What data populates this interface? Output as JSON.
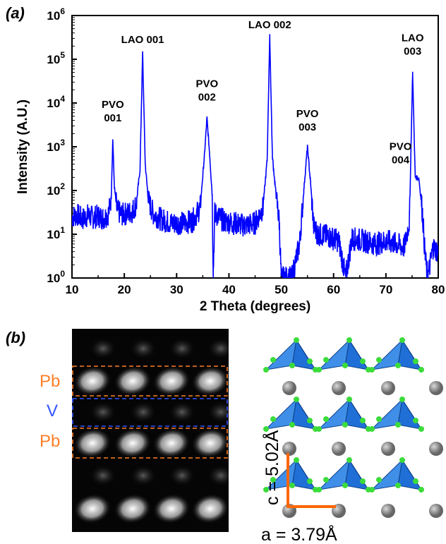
{
  "panels": {
    "a": {
      "label": "(a)"
    },
    "b": {
      "label": "(b)"
    }
  },
  "chart_data": {
    "type": "line",
    "xlabel": "2 Theta (degrees)",
    "ylabel": "Intensity (A.U.)",
    "xlim": [
      10,
      80
    ],
    "ylim": [
      1,
      1000000
    ],
    "yscale": "log",
    "xticks": [
      10,
      20,
      30,
      40,
      50,
      60,
      70,
      80
    ],
    "yticks": [
      "10^0",
      "10^1",
      "10^2",
      "10^3",
      "10^4",
      "10^5",
      "10^6"
    ],
    "series": [
      {
        "color": "#0000ff",
        "points": [
          [
            10,
            25
          ],
          [
            11,
            28
          ],
          [
            12,
            22
          ],
          [
            13,
            27
          ],
          [
            14,
            24
          ],
          [
            15,
            26
          ],
          [
            16,
            23
          ],
          [
            17,
            30
          ],
          [
            17.5,
            70
          ],
          [
            17.8,
            1500
          ],
          [
            18.1,
            120
          ],
          [
            18.6,
            35
          ],
          [
            19.5,
            28
          ],
          [
            20.5,
            30
          ],
          [
            21.5,
            33
          ],
          [
            22.3,
            50
          ],
          [
            23,
            300
          ],
          [
            23.5,
            140000
          ],
          [
            24,
            400
          ],
          [
            24.6,
            60
          ],
          [
            25.5,
            30
          ],
          [
            27,
            22
          ],
          [
            29,
            18
          ],
          [
            31,
            18
          ],
          [
            33,
            20
          ],
          [
            34.5,
            40
          ],
          [
            35.3,
            600
          ],
          [
            35.8,
            4500
          ],
          [
            36.3,
            700
          ],
          [
            36.8,
            80
          ],
          [
            37,
            1.4
          ],
          [
            37.3,
            30
          ],
          [
            39,
            20
          ],
          [
            41,
            18
          ],
          [
            43,
            16
          ],
          [
            45,
            18
          ],
          [
            46.5,
            40
          ],
          [
            47.3,
            500
          ],
          [
            47.8,
            330000
          ],
          [
            48.3,
            600
          ],
          [
            49,
            80
          ],
          [
            49.6,
            20
          ],
          [
            50,
            1
          ],
          [
            52,
            1
          ],
          [
            53.5,
            6
          ],
          [
            54.3,
            100
          ],
          [
            55,
            1000
          ],
          [
            55.6,
            150
          ],
          [
            56.2,
            15
          ],
          [
            57,
            10
          ],
          [
            59,
            9
          ],
          [
            61,
            7
          ],
          [
            62.3,
            1
          ],
          [
            63.5,
            8
          ],
          [
            66,
            7
          ],
          [
            68,
            6
          ],
          [
            70,
            7
          ],
          [
            72,
            6
          ],
          [
            73.5,
            5
          ],
          [
            74.5,
            20
          ],
          [
            75.1,
            50000
          ],
          [
            75.6,
            200
          ],
          [
            76.3,
            190
          ],
          [
            77,
            30
          ],
          [
            77.5,
            3
          ],
          [
            78,
            1
          ],
          [
            79,
            5
          ],
          [
            80,
            4
          ]
        ]
      }
    ],
    "annotations": [
      {
        "lines": [
          "PVO",
          "001"
        ],
        "x": 17.8,
        "y": 1500
      },
      {
        "lines": [
          "LAO 001"
        ],
        "x": 23.5,
        "y": 140000
      },
      {
        "lines": [
          "PVO",
          "002"
        ],
        "x": 35.8,
        "y": 4500
      },
      {
        "lines": [
          "LAO 002"
        ],
        "x": 47.8,
        "y": 330000
      },
      {
        "lines": [
          "PVO",
          "003"
        ],
        "x": 55,
        "y": 1000
      },
      {
        "lines": [
          "PVO",
          "004"
        ],
        "x": 76.3,
        "y": 190
      },
      {
        "lines": [
          "LAO",
          "003"
        ],
        "x": 75.1,
        "y": 50000
      }
    ]
  },
  "stem_image": {
    "layers": [
      {
        "label": "Pb",
        "color": "#ff7f27"
      },
      {
        "label": "V",
        "color": "#3355ff"
      },
      {
        "label": "Pb",
        "color": "#ff7f27"
      }
    ]
  },
  "crystal": {
    "c_label": "c = 5.02Å",
    "a_label": "a = 3.79Å",
    "arrow_color": "#ff6600",
    "pyramid_color": "#1f6fd6",
    "o_atom_color": "#3bdc3b",
    "pb_atom_color": "#666666"
  }
}
